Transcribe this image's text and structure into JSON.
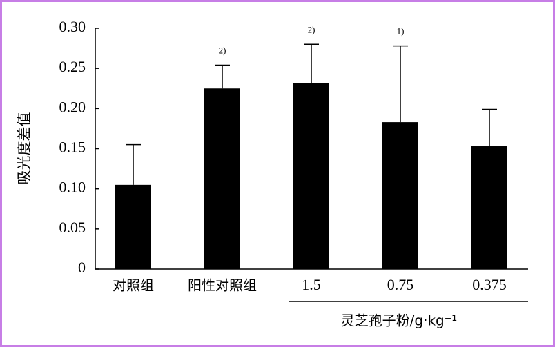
{
  "chart_data": {
    "type": "bar",
    "y_label": "吸光度差值",
    "x_group_label": "灵芝孢子粉/g·kg⁻¹",
    "categories": [
      "对照组",
      "阳性对照组",
      "1.5",
      "0.75",
      "0.375"
    ],
    "values": [
      0.105,
      0.225,
      0.232,
      0.183,
      0.153
    ],
    "errors": [
      0.05,
      0.029,
      0.048,
      0.095,
      0.046
    ],
    "annotations": [
      null,
      "2)",
      "2)",
      "1)",
      null
    ],
    "color": "#000000",
    "ylim": [
      0,
      0.3
    ],
    "yticks": [
      0,
      0.05,
      {
        "value": 0.1,
        "label": "0.10"
      },
      0.15,
      {
        "value": 0.2,
        "label": "0.20"
      },
      0.25,
      {
        "value": 0.3,
        "label": "0.30"
      }
    ]
  }
}
